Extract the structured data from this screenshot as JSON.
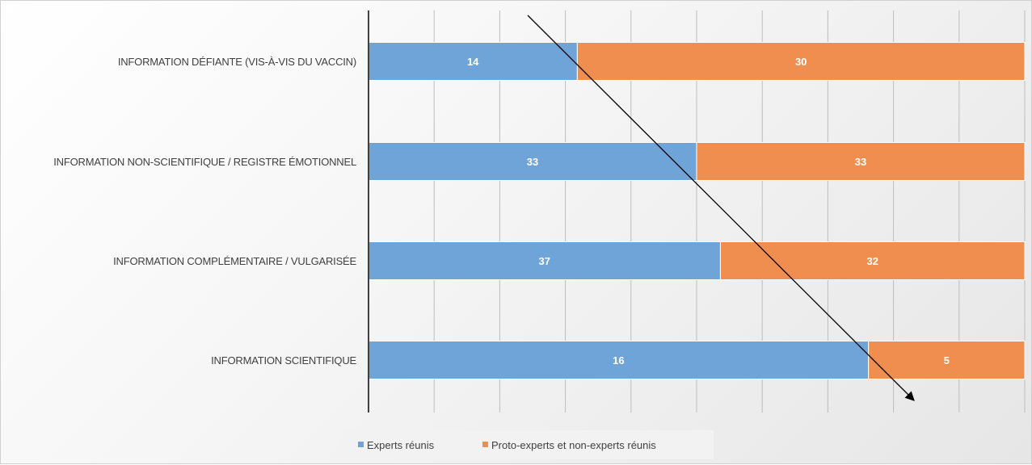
{
  "chart_data": {
    "type": "bar",
    "orientation": "horizontal",
    "stacked": "percent",
    "categories": [
      "INFORMATION DÉFIANTE (VIS-À-VIS DU VACCIN)",
      "INFORMATION NON-SCIENTIFIQUE / REGISTRE ÉMOTIONNEL",
      "INFORMATION COMPLÉMENTAIRE / VULGARISÉE",
      "INFORMATION SCIENTIFIQUE"
    ],
    "series": [
      {
        "name": "Experts réunis",
        "values": [
          14,
          33,
          37,
          16
        ],
        "color": "#6fa4d8"
      },
      {
        "name": "Proto-experts et non-experts réunis",
        "values": [
          30,
          33,
          32,
          5
        ],
        "color": "#ef8e4f"
      }
    ],
    "xlim": [
      0,
      1
    ],
    "grid": true,
    "legend": "bottom-center",
    "annotation": {
      "type": "arrow",
      "color": "#000000"
    }
  }
}
